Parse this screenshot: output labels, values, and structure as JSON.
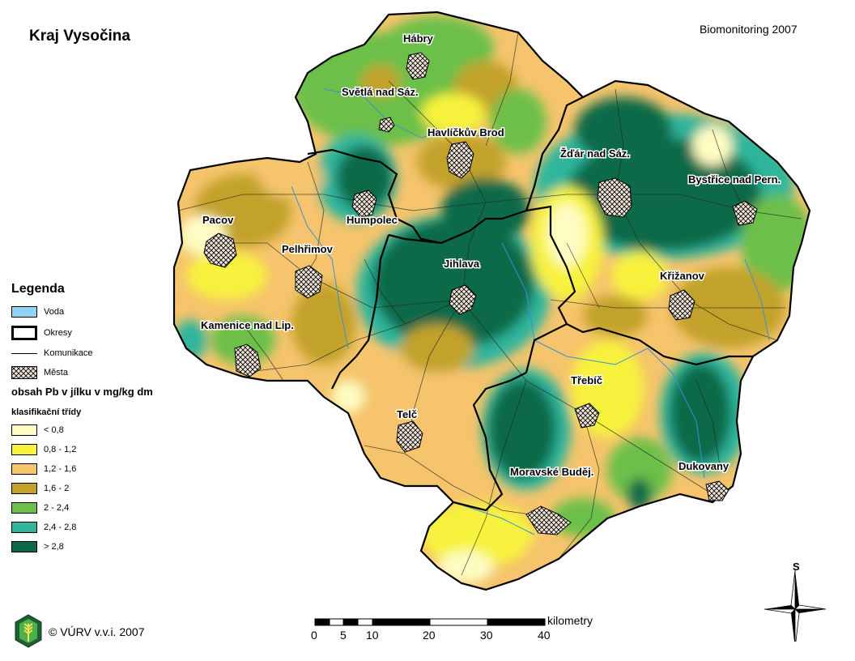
{
  "map": {
    "title": "Kraj Vysočina",
    "subtitle": "Biomonitoring 2007",
    "cities": [
      "Hábry",
      "Světlá nad Sáz.",
      "Havlíčkův Brod",
      "Žďár nad Sáz.",
      "Bystřice nad Pern.",
      "Pacov",
      "Humpolec",
      "Pelhřimov",
      "Jihlava",
      "Křižanov",
      "Kamenice nad Lip.",
      "Třebíč",
      "Telč",
      "Moravské Buděj.",
      "Dukovany"
    ]
  },
  "legend": {
    "heading": "Legenda",
    "items": [
      {
        "label": "Voda",
        "color": "#8fd3f5"
      },
      {
        "label": "Okresy"
      },
      {
        "label": "Komunikace"
      },
      {
        "label": "Města"
      }
    ],
    "attribute_title": "obsah Pb v jílku v mg/kg dm",
    "classes_title": "klasifikační třídy",
    "classes": [
      {
        "label": "< 0,8",
        "color": "#fefcc2"
      },
      {
        "label": "0,8 - 1,2",
        "color": "#f7f23c"
      },
      {
        "label": "1,2 - 1,6",
        "color": "#f5c46c"
      },
      {
        "label": "1,6 - 2",
        "color": "#c2a22a"
      },
      {
        "label": "2 - 2,4",
        "color": "#6cc04a"
      },
      {
        "label": "2,4 - 2,8",
        "color": "#2fb59b"
      },
      {
        "label": "> 2,8",
        "color": "#0a6a48"
      }
    ]
  },
  "scalebar": {
    "unit": "kilometry",
    "ticks": [
      "0",
      "5",
      "10",
      "20",
      "30",
      "40"
    ]
  },
  "north_label": "S",
  "copyright": "© VÚRV v.v.i. 2007"
}
